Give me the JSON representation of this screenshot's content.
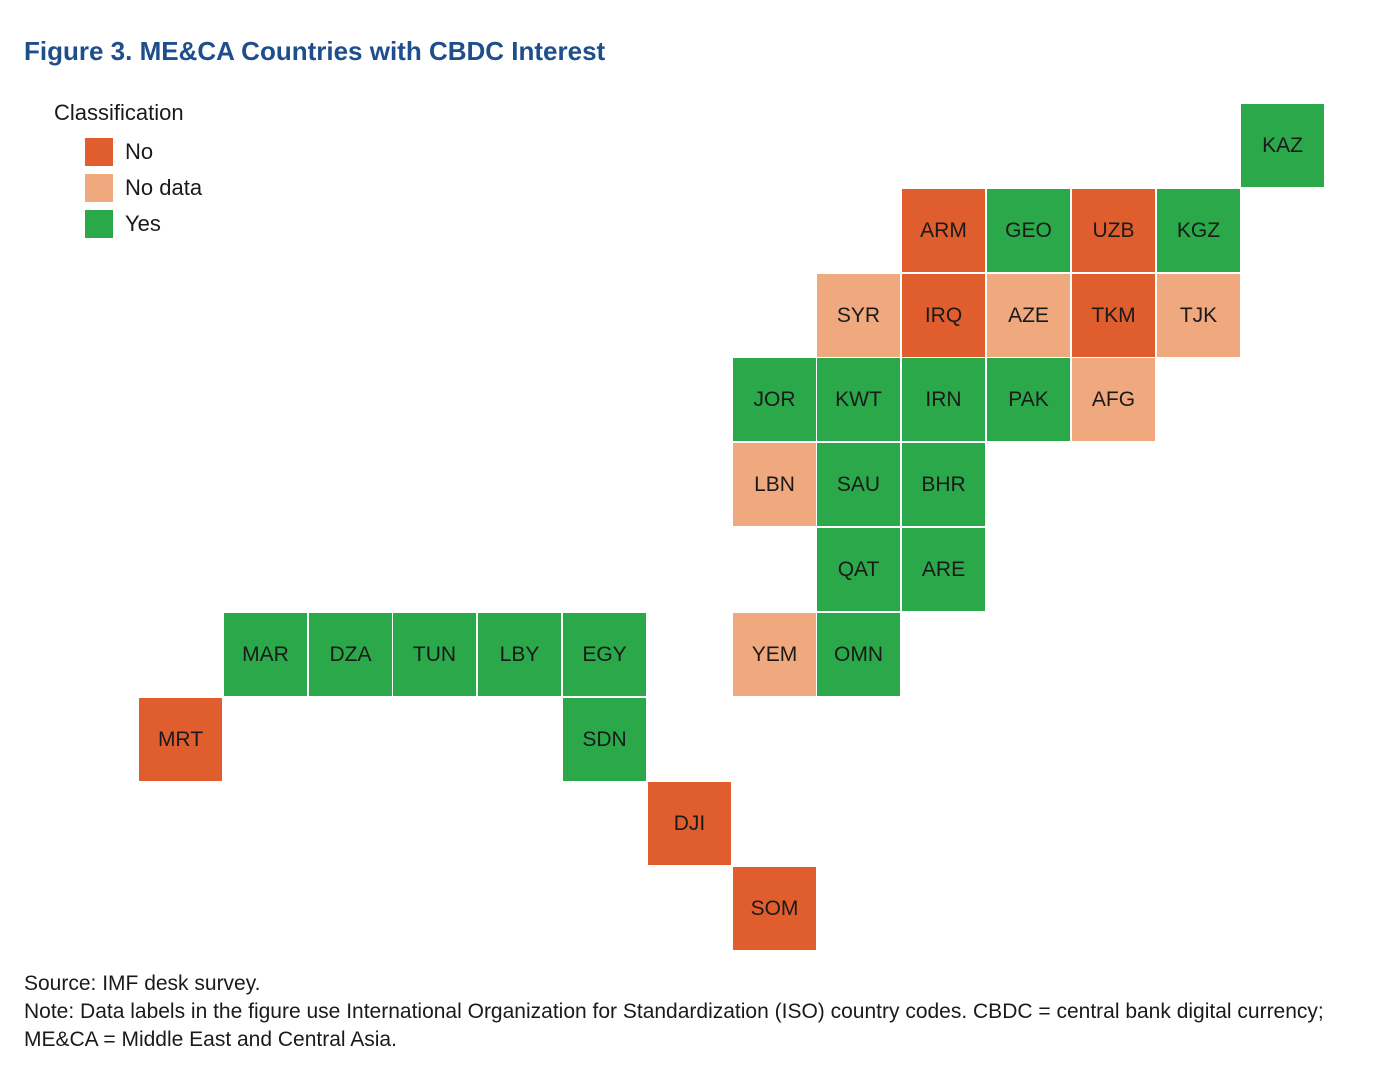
{
  "title": "Figure 3. ME&CA Countries with CBDC Interest",
  "legend": {
    "title": "Classification",
    "items": [
      {
        "label": "No",
        "color": "#e05e2e"
      },
      {
        "label": "No data",
        "color": "#f0a97e"
      },
      {
        "label": "Yes",
        "color": "#2aa84a"
      }
    ]
  },
  "colors": {
    "No": "#e05e2e",
    "No data": "#f0a97e",
    "Yes": "#2aa84a"
  },
  "map_data": {
    "type": "tile-grid-map",
    "tiles": [
      {
        "code": "KAZ",
        "row": 0,
        "col": 13,
        "class": "Yes"
      },
      {
        "code": "ARM",
        "row": 1,
        "col": 9,
        "class": "No"
      },
      {
        "code": "GEO",
        "row": 1,
        "col": 10,
        "class": "Yes"
      },
      {
        "code": "UZB",
        "row": 1,
        "col": 11,
        "class": "No"
      },
      {
        "code": "KGZ",
        "row": 1,
        "col": 12,
        "class": "Yes"
      },
      {
        "code": "SYR",
        "row": 2,
        "col": 8,
        "class": "No data"
      },
      {
        "code": "IRQ",
        "row": 2,
        "col": 9,
        "class": "No"
      },
      {
        "code": "AZE",
        "row": 2,
        "col": 10,
        "class": "No data"
      },
      {
        "code": "TKM",
        "row": 2,
        "col": 11,
        "class": "No"
      },
      {
        "code": "TJK",
        "row": 2,
        "col": 12,
        "class": "No data"
      },
      {
        "code": "JOR",
        "row": 3,
        "col": 7,
        "class": "Yes"
      },
      {
        "code": "KWT",
        "row": 3,
        "col": 8,
        "class": "Yes"
      },
      {
        "code": "IRN",
        "row": 3,
        "col": 9,
        "class": "Yes"
      },
      {
        "code": "PAK",
        "row": 3,
        "col": 10,
        "class": "Yes"
      },
      {
        "code": "AFG",
        "row": 3,
        "col": 11,
        "class": "No data"
      },
      {
        "code": "LBN",
        "row": 4,
        "col": 7,
        "class": "No data"
      },
      {
        "code": "SAU",
        "row": 4,
        "col": 8,
        "class": "Yes"
      },
      {
        "code": "BHR",
        "row": 4,
        "col": 9,
        "class": "Yes"
      },
      {
        "code": "QAT",
        "row": 5,
        "col": 8,
        "class": "Yes"
      },
      {
        "code": "ARE",
        "row": 5,
        "col": 9,
        "class": "Yes"
      },
      {
        "code": "MAR",
        "row": 6,
        "col": 1,
        "class": "Yes"
      },
      {
        "code": "DZA",
        "row": 6,
        "col": 2,
        "class": "Yes"
      },
      {
        "code": "TUN",
        "row": 6,
        "col": 3,
        "class": "Yes"
      },
      {
        "code": "LBY",
        "row": 6,
        "col": 4,
        "class": "Yes"
      },
      {
        "code": "EGY",
        "row": 6,
        "col": 5,
        "class": "Yes"
      },
      {
        "code": "YEM",
        "row": 6,
        "col": 7,
        "class": "No data"
      },
      {
        "code": "OMN",
        "row": 6,
        "col": 8,
        "class": "Yes"
      },
      {
        "code": "MRT",
        "row": 7,
        "col": 0,
        "class": "No"
      },
      {
        "code": "SDN",
        "row": 7,
        "col": 5,
        "class": "Yes"
      },
      {
        "code": "DJI",
        "row": 8,
        "col": 6,
        "class": "No"
      },
      {
        "code": "SOM",
        "row": 9,
        "col": 7,
        "class": "No"
      }
    ]
  },
  "footer": {
    "source": "Source: IMF desk survey.",
    "note": "Note: Data labels in the figure use International Organization for Standardization (ISO) country codes. CBDC = central bank digital currency; ME&CA = Middle East and Central Asia."
  }
}
